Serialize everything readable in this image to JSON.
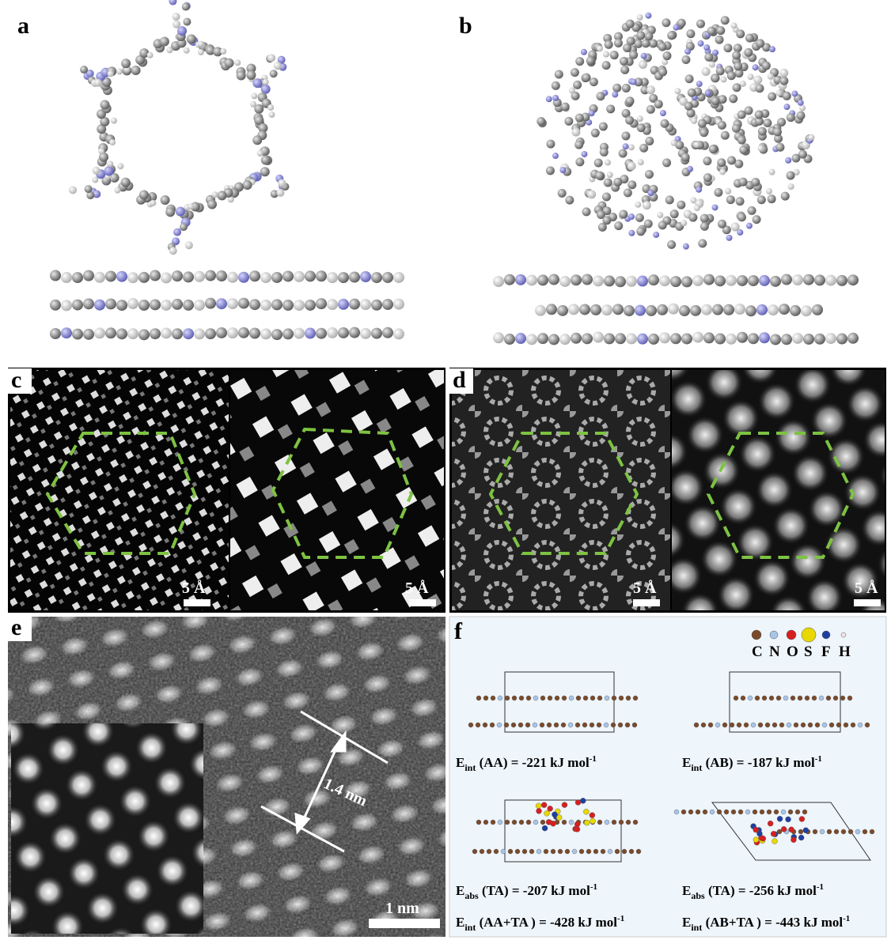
{
  "panel_labels": [
    "a",
    "b",
    "c",
    "d",
    "e",
    "f"
  ],
  "scale_bars": {
    "c_left": "5 Å",
    "c_right": "5 Å",
    "d_left": "5 Å",
    "d_right": "5 Å",
    "e": "1 nm"
  },
  "e_distance": "1.4 nm",
  "legend": [
    "C",
    "N",
    "O",
    "S",
    "F",
    "H"
  ],
  "energies": [
    {
      "symbol": "E",
      "sub": "int",
      "text": " (AA) = -221 kJ mol",
      "sup": "-1"
    },
    {
      "symbol": "E",
      "sub": "int",
      "text": " (AB) = -187 kJ mol",
      "sup": "-1"
    },
    {
      "symbol": "E",
      "sub": "abs",
      "text": " (TA) = -207 kJ mol",
      "sup": "-1"
    },
    {
      "symbol": "E",
      "sub": "abs",
      "text": " (TA) = -256 kJ mol",
      "sup": "-1"
    },
    {
      "symbol": "E",
      "sub": "int",
      "text": " (AA+TA ) = -428 kJ mol",
      "sup": "-1"
    },
    {
      "symbol": "E",
      "sub": "int",
      "text": " (AB+TA ) = -443 kJ mol",
      "sup": "-1"
    }
  ]
}
